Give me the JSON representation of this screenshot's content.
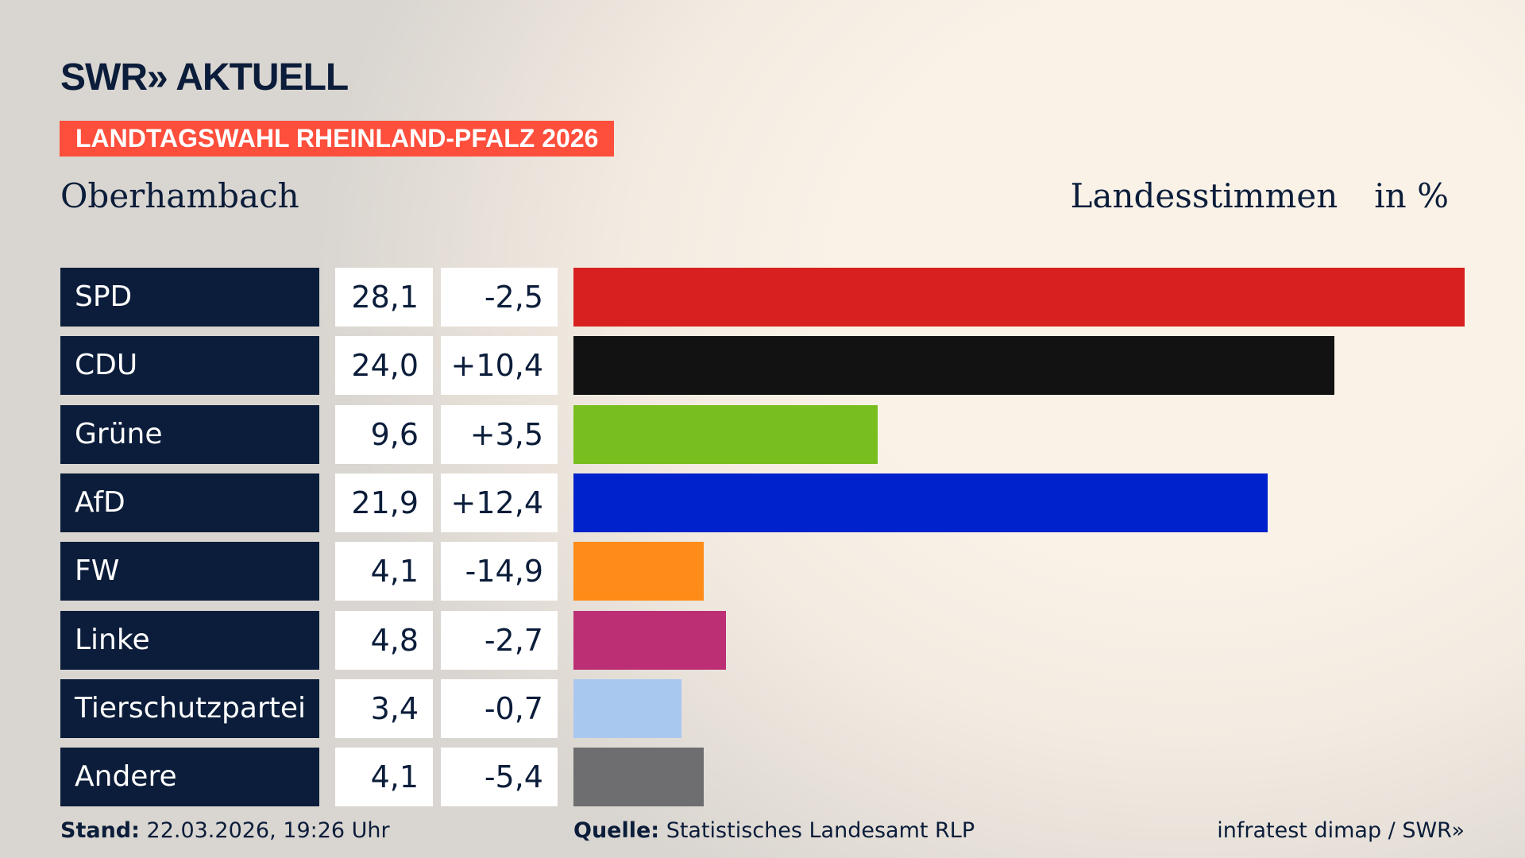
{
  "header": {
    "logo": "SWR» AKTUELL",
    "banner": "LANDTAGSWAHL RHEINLAND-PFALZ 2026",
    "place": "Oberhambach",
    "metric": "Landesstimmen",
    "unit": "in %"
  },
  "chart_data": {
    "type": "bar",
    "orientation": "horizontal",
    "xlim": [
      0,
      28.1
    ],
    "categories": [
      "SPD",
      "CDU",
      "Grüne",
      "AfD",
      "FW",
      "Linke",
      "Tierschutzpartei",
      "Andere"
    ],
    "values": [
      28.1,
      24.0,
      9.6,
      21.9,
      4.1,
      4.8,
      3.4,
      4.1
    ],
    "value_labels": [
      "28,1",
      "24,0",
      "9,6",
      "21,9",
      "4,1",
      "4,8",
      "3,4",
      "4,1"
    ],
    "diff_labels": [
      "-2,5",
      "+10,4",
      "+3,5",
      "+12,4",
      "-14,9",
      "-2,7",
      "-0,7",
      "-5,4"
    ],
    "colors": [
      "#d82020",
      "#121212",
      "#78be1e",
      "#0022cc",
      "#ff8c18",
      "#bc2f74",
      "#a9c8ef",
      "#6e6e70"
    ]
  },
  "footer": {
    "stand_label": "Stand:",
    "stand": "22.03.2026, 19:26 Uhr",
    "source_label": "Quelle:",
    "source": "Statistisches Landesamt RLP",
    "credit": "infratest dimap / SWR»"
  }
}
